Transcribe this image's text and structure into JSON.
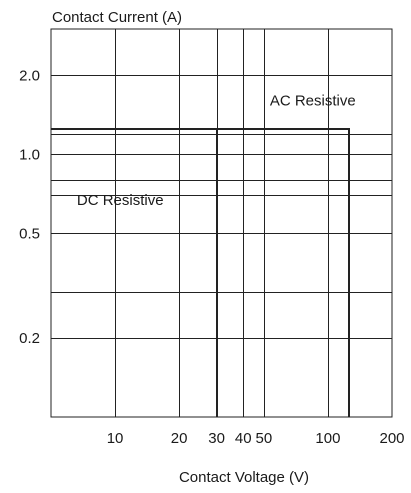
{
  "chart_data": {
    "type": "line",
    "title": "",
    "xlabel": "Contact Voltage (V)",
    "ylabel": "Contact Current (A)",
    "x_scale": "log",
    "y_scale": "log",
    "xlim": [
      5,
      200
    ],
    "ylim": [
      0.1,
      3
    ],
    "grid": true,
    "x_ticks": [
      {
        "value": 10,
        "label": "10"
      },
      {
        "value": 20,
        "label": "20"
      },
      {
        "value": 30,
        "label": "30"
      },
      {
        "value": 40,
        "label": "40"
      },
      {
        "value": 50,
        "label": "50"
      },
      {
        "value": 100,
        "label": "100"
      },
      {
        "value": 200,
        "label": "200"
      }
    ],
    "y_ticks": [
      {
        "value": 0.2,
        "label": "0.2"
      },
      {
        "value": 0.5,
        "label": "0.5"
      },
      {
        "value": 1.0,
        "label": "1.0"
      },
      {
        "value": 2.0,
        "label": "2.0"
      }
    ],
    "x_gridlines": [
      10,
      20,
      30,
      40,
      50,
      100
    ],
    "y_gridlines": [
      0.2,
      0.3,
      0.5,
      0.7,
      0.8,
      1.0,
      1.2,
      2.0
    ],
    "series": [
      {
        "name": "AC Resistive",
        "x": [
          5,
          125,
          125
        ],
        "y": [
          1.25,
          1.25,
          0.1
        ],
        "color": "#222222"
      },
      {
        "name": "DC Resistive",
        "x": [
          5,
          30,
          30
        ],
        "y": [
          1.25,
          1.25,
          0.1
        ],
        "color": "#222222"
      }
    ],
    "annotations": [
      {
        "text": "AC Resistive",
        "x": 50,
        "y": 1.6
      },
      {
        "text": "DC Resistive",
        "x": 6.2,
        "y": 0.67
      }
    ]
  }
}
